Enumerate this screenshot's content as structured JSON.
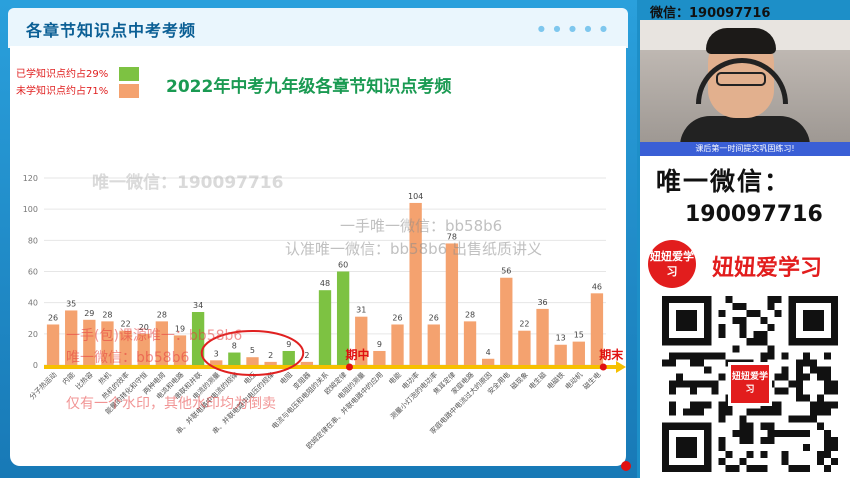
{
  "header": {
    "title": "各章节知识点中考考频"
  },
  "legend": {
    "learned": {
      "label": "已学知识点约占29%",
      "color": "#7dc242"
    },
    "unlearned": {
      "label": "未学知识点约占71%",
      "color": "#f4a26f"
    }
  },
  "chart_data": {
    "type": "bar",
    "title": "2022年中考九年级各章节知识点考频",
    "ylim": [
      0,
      120
    ],
    "yticks": [
      0,
      20,
      40,
      60,
      80,
      100,
      120
    ],
    "categories": [
      "分子热运动",
      "内能",
      "比热容",
      "热机",
      "热机的效率",
      "能量的转化和守恒",
      "两种电荷",
      "电流和电路",
      "串联和并联",
      "电流的测量",
      "串、并联电路中电流的规律",
      "电压",
      "串、并联电路中电压的规律",
      "电阻",
      "变阻器",
      "电流与电压和电阻的关系",
      "欧姆定律",
      "电阻的测量",
      "欧姆定律在串、并联电路中的应用",
      "电能",
      "电功率",
      "测量小灯泡的电功率",
      "焦耳定律",
      "家庭电路",
      "家庭电路中电流过大的原因",
      "安全用电",
      "磁现象",
      "电生磁",
      "电磁铁",
      "电动机",
      "磁生电"
    ],
    "values": [
      26,
      35,
      29,
      28,
      22,
      20,
      28,
      19,
      34,
      3,
      8,
      5,
      2,
      9,
      2,
      48,
      60,
      31,
      9,
      26,
      104,
      26,
      78,
      28,
      4,
      56,
      22,
      36,
      13,
      15,
      46
    ],
    "learned": [
      false,
      false,
      false,
      false,
      false,
      false,
      false,
      false,
      true,
      false,
      true,
      false,
      false,
      true,
      false,
      true,
      true,
      false,
      false,
      false,
      false,
      false,
      false,
      false,
      false,
      false,
      false,
      false,
      false,
      false,
      false
    ],
    "phase_markers": [
      {
        "label": "期中",
        "after_index": 16
      },
      {
        "label": "期末",
        "after_index": 30
      }
    ]
  },
  "watermarks": {
    "big": "唯一微信：190097716",
    "line1": "一手唯一微信：bb58b6",
    "line2": "认准唯一微信：bb58b6 出售纸质讲义",
    "red1": "一手(包)课源唯一：bb58b6",
    "red2": "唯一微信：bb58b6",
    "red3": "仅有一个水印，其他水印均为倒卖"
  },
  "side": {
    "top_label": "微信：190097716",
    "banner": "课后第一时间提交巩固练习!",
    "promo_line1": "唯一微信：",
    "promo_line2": "190097716",
    "logo_text": "妞妞爱学习",
    "promo_line3": "妞妞爱学习",
    "qr_logo": "妞妞爱学习"
  }
}
